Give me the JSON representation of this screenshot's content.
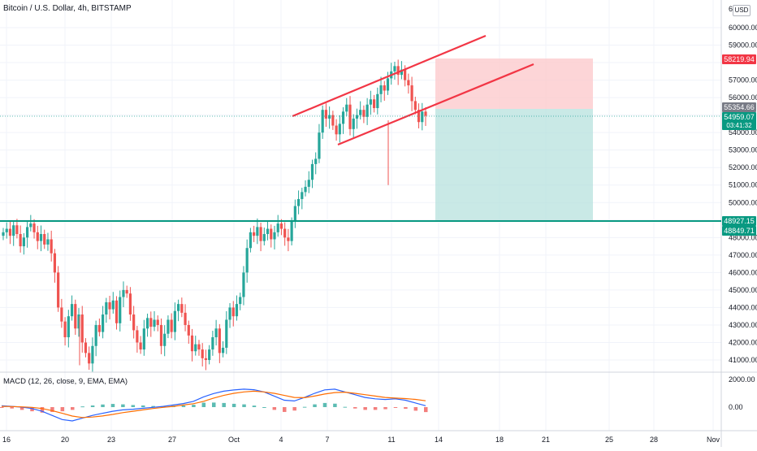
{
  "header": {
    "title": "Bitcoin / U.S. Dollar, 4h, BITSTAMP",
    "currency": "USD"
  },
  "colors": {
    "bull": "#26a69a",
    "bear": "#ef5350",
    "trendline": "#f23645",
    "support_line": "#089981",
    "stop_zone": "#fccbcd",
    "target_zone": "#b2dfdb",
    "macd_line": "#2962ff",
    "signal_line": "#ff6d00",
    "badge_red": "#f23645",
    "badge_green": "#089981",
    "badge_gray": "#787b86"
  },
  "price_axis": {
    "ticks": [
      "60000.00",
      "59000.00",
      "57000.00",
      "56000.00",
      "54000.00",
      "53000.00",
      "52000.00",
      "51000.00",
      "50000.00",
      "48000.00",
      "47000.00",
      "46000.00",
      "45000.00",
      "44000.00",
      "43000.00",
      "42000.00",
      "41000.00"
    ],
    "top_partial": "61"
  },
  "badges": {
    "stop_price": "58219.94",
    "entry_price": "55354.66",
    "last_price": "54959.07",
    "countdown": "03:41:32",
    "support_price": "48927.15",
    "target_price": "48849.71"
  },
  "macd": {
    "label": "MACD (12, 26, close, 9, EMA, EMA)",
    "ticks": [
      "2000.00",
      "0.00"
    ]
  },
  "time_axis": {
    "labels": [
      "16",
      "20",
      "23",
      "27",
      "Oct",
      "4",
      "7",
      "11",
      "14",
      "18",
      "21",
      "25",
      "28",
      "Nov"
    ]
  },
  "chart_data": {
    "type": "candlestick",
    "title": "Bitcoin / U.S. Dollar, 4h, BITSTAMP",
    "yrange": [
      40500,
      61300
    ],
    "support_level": 48900,
    "entry_level": 55354.66,
    "stop_level": 58219.94,
    "target_level": 48849.71,
    "last_price": 54959.07,
    "upper_trendline": [
      [
        55500,
        "~Oct 5"
      ],
      [
        59600,
        "~Oct 17"
      ]
    ],
    "lower_trendline": [
      [
        53400,
        "~Oct 8"
      ],
      [
        57900,
        "~Oct 18"
      ]
    ],
    "approx_closes": [
      48300,
      48500,
      48100,
      48700,
      48200,
      47500,
      48000,
      48600,
      48800,
      48300,
      47800,
      48200,
      47600,
      47900,
      47100,
      46000,
      44000,
      43200,
      42300,
      43500,
      44200,
      42800,
      43600,
      42000,
      41400,
      40800,
      41800,
      43000,
      42600,
      43600,
      44300,
      43900,
      44400,
      43100,
      44600,
      45000,
      44800,
      43600,
      42700,
      42000,
      41600,
      42800,
      43400,
      42900,
      43300,
      43000,
      41800,
      42500,
      43300,
      42600,
      43800,
      44200,
      43700,
      43000,
      42400,
      41500,
      41900,
      41600,
      41100,
      41000,
      41600,
      42300,
      42800,
      41400,
      41700,
      43300,
      44000,
      43500,
      44200,
      44600,
      46000,
      47400,
      48300,
      48100,
      48600,
      47800,
      48200,
      48500,
      47900,
      48300,
      48800,
      48500,
      48000,
      47800,
      48900,
      49800,
      50200,
      50600,
      50900,
      51300,
      52200,
      52500,
      54000,
      55300,
      54800,
      55000,
      54400,
      53900,
      54500,
      55200,
      55600,
      54200,
      54800,
      55000,
      55300,
      54900,
      55600,
      55900,
      55400,
      56200,
      56700,
      56400,
      57100,
      57500,
      57800,
      57300,
      57600,
      57000,
      56700,
      55800,
      55300,
      54600,
      55200,
      54959
    ],
    "macd": {
      "macd_line": [
        100,
        50,
        0,
        -100,
        -300,
        -600,
        -900,
        -1000,
        -800,
        -600,
        -450,
        -300,
        -200,
        -150,
        -80,
        -20,
        50,
        150,
        260,
        420,
        740,
        980,
        1150,
        1240,
        1300,
        1260,
        1100,
        800,
        500,
        450,
        700,
        1000,
        1250,
        1300,
        1100,
        900,
        700,
        600,
        550,
        600,
        500,
        300,
        100
      ],
      "signal_line": [
        50,
        40,
        20,
        -20,
        -100,
        -250,
        -450,
        -650,
        -750,
        -720,
        -640,
        -530,
        -400,
        -300,
        -200,
        -100,
        -20,
        50,
        150,
        250,
        420,
        650,
        850,
        1000,
        1100,
        1150,
        1100,
        1000,
        850,
        700,
        680,
        800,
        950,
        1050,
        1080,
        1000,
        900,
        800,
        700,
        650,
        620,
        560,
        460
      ],
      "histogram": [
        -50,
        -100,
        -200,
        -300,
        -400,
        -350,
        -300,
        -200,
        50,
        120,
        190,
        230,
        200,
        150,
        120,
        80,
        70,
        100,
        110,
        170,
        320,
        330,
        300,
        240,
        200,
        110,
        0,
        -200,
        -350,
        -250,
        20,
        200,
        300,
        250,
        20,
        -100,
        -200,
        -200,
        -150,
        -50,
        -120,
        -260,
        -360
      ]
    }
  }
}
